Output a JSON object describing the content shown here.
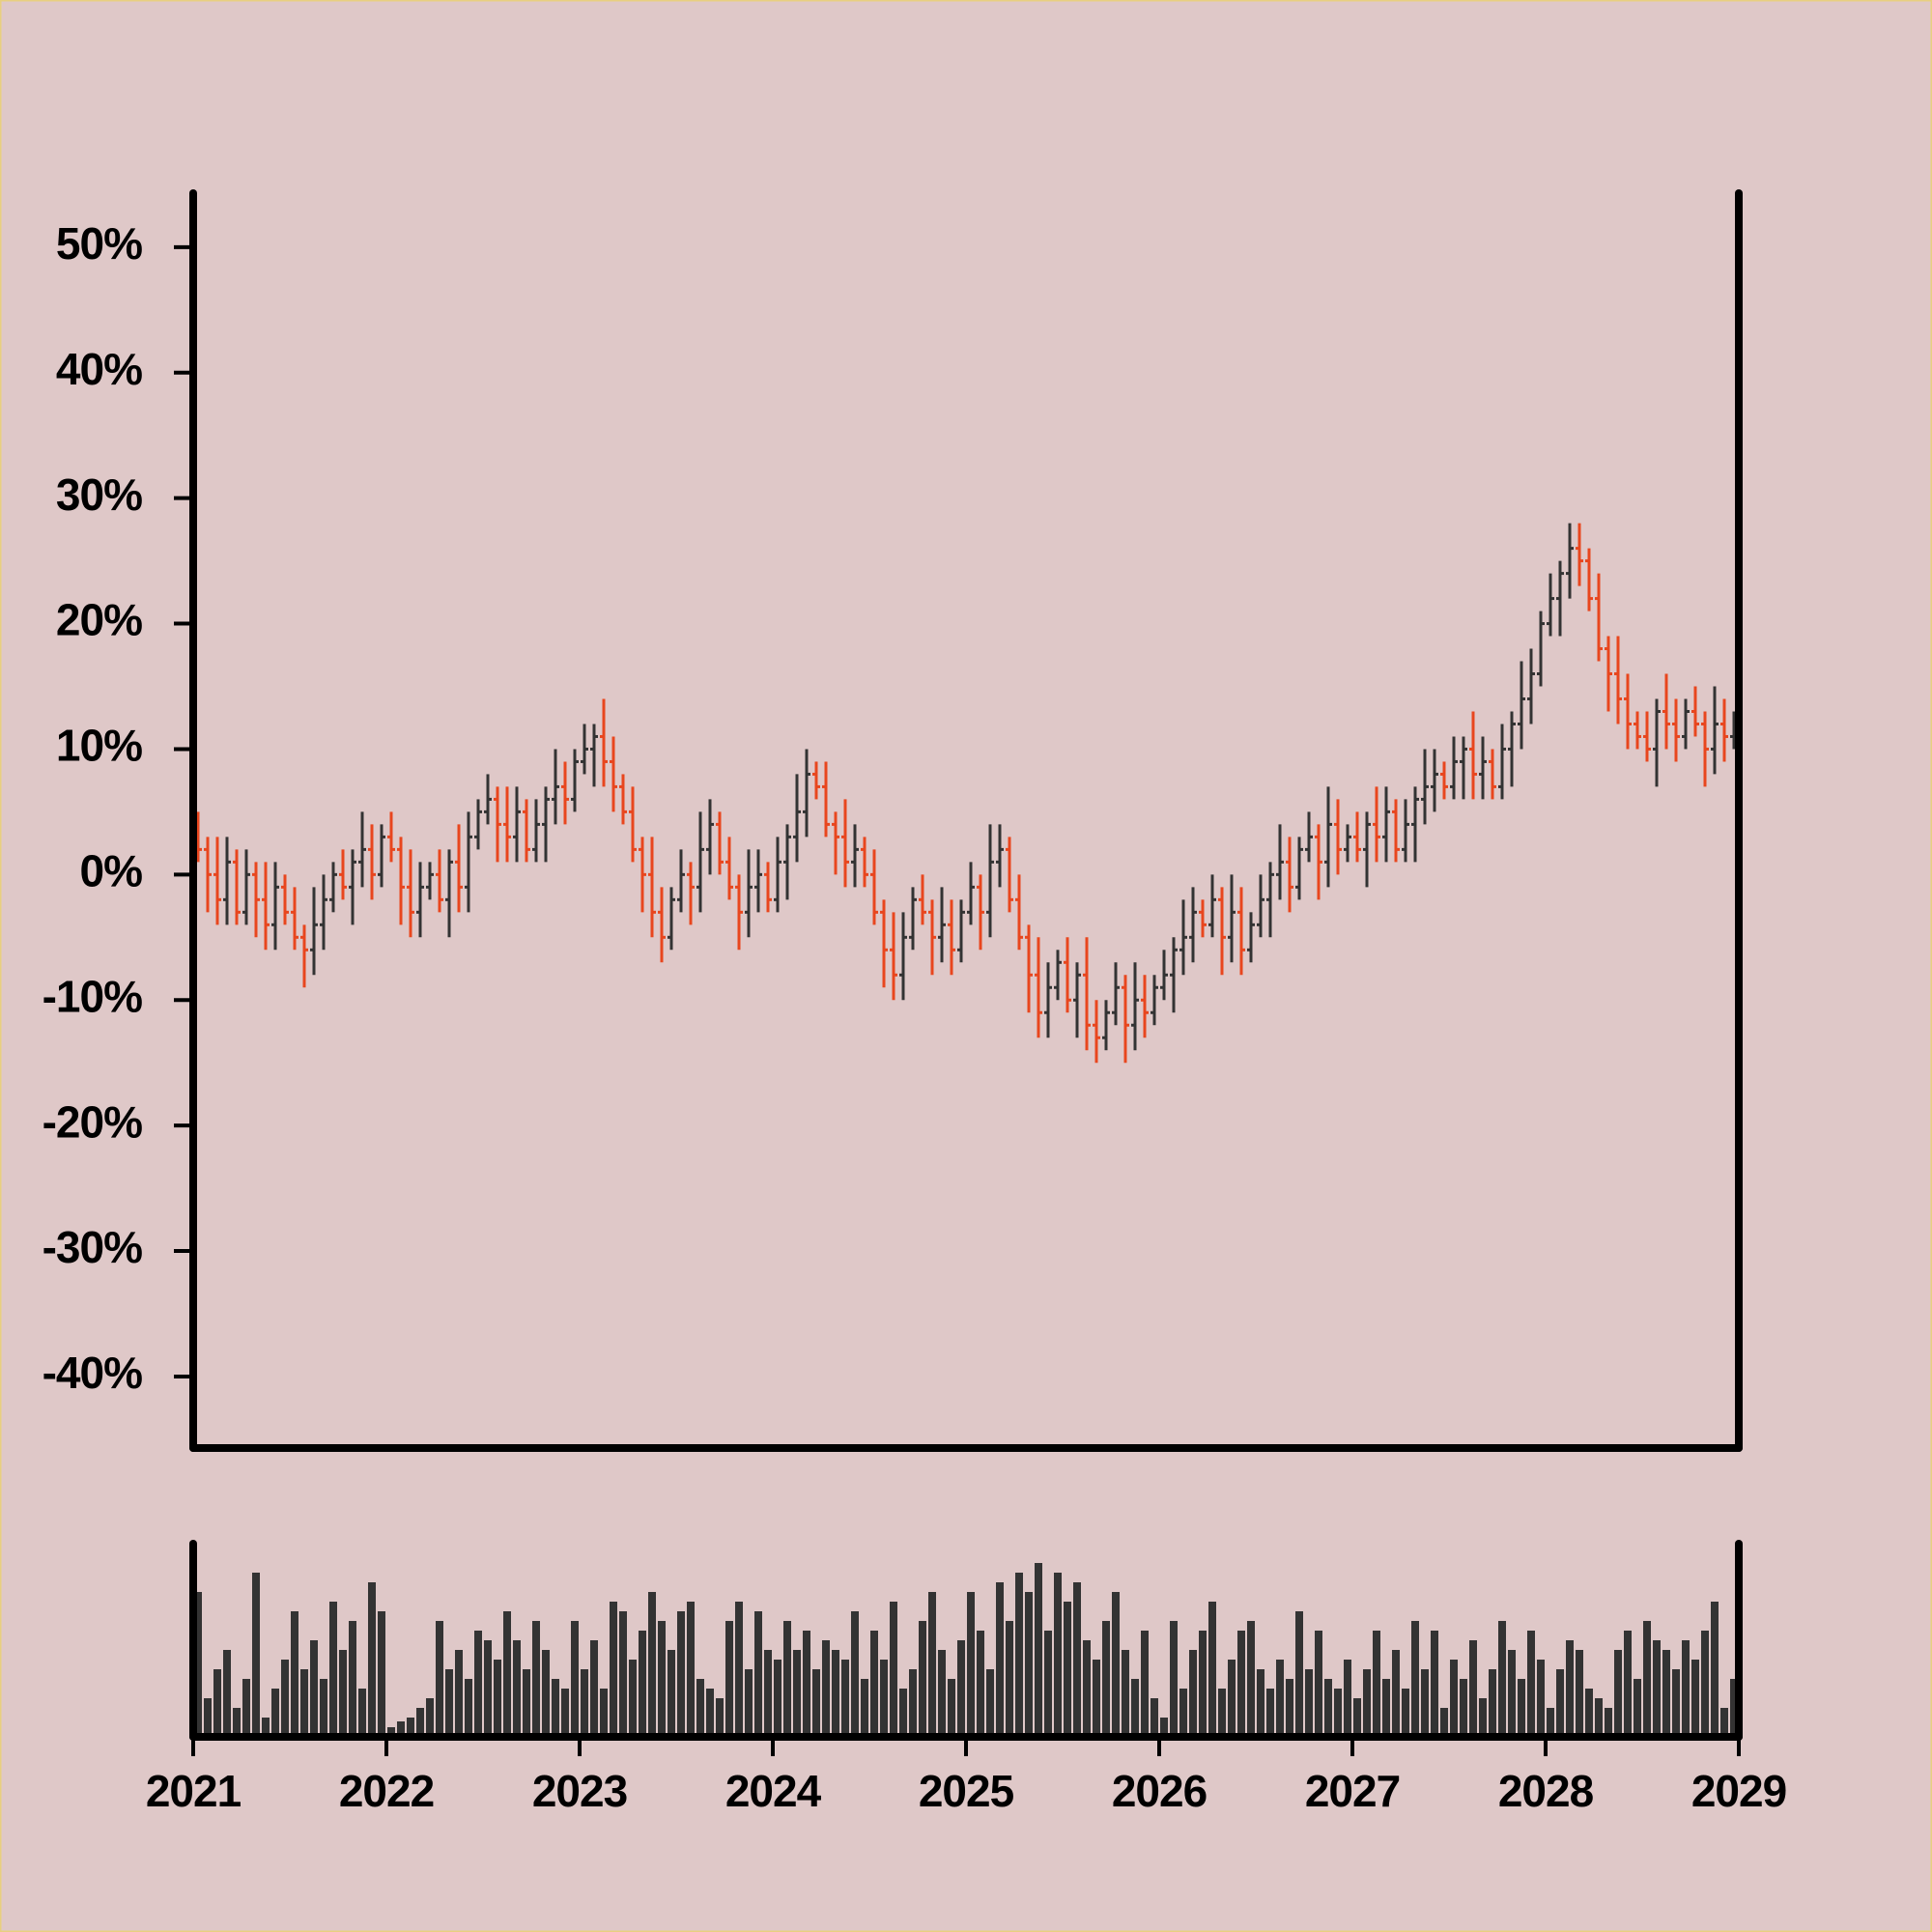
{
  "chart_data": {
    "type": "ohlc",
    "x": [
      2021.025,
      2021.075,
      2021.125,
      2021.175,
      2021.225,
      2021.275,
      2021.325,
      2021.375,
      2021.425,
      2021.475,
      2021.525,
      2021.575,
      2021.625,
      2021.675,
      2021.725,
      2021.775,
      2021.825,
      2021.875,
      2021.925,
      2021.975,
      2022.025,
      2022.075,
      2022.125,
      2022.175,
      2022.225,
      2022.275,
      2022.325,
      2022.375,
      2022.425,
      2022.475,
      2022.525,
      2022.575,
      2022.625,
      2022.675,
      2022.725,
      2022.775,
      2022.825,
      2022.875,
      2022.925,
      2022.975,
      2023.025,
      2023.075,
      2023.125,
      2023.175,
      2023.225,
      2023.275,
      2023.325,
      2023.375,
      2023.425,
      2023.475,
      2023.525,
      2023.575,
      2023.625,
      2023.675,
      2023.725,
      2023.775,
      2023.825,
      2023.875,
      2023.925,
      2023.975,
      2024.025,
      2024.075,
      2024.125,
      2024.175,
      2024.225,
      2024.275,
      2024.325,
      2024.375,
      2024.425,
      2024.475,
      2024.525,
      2024.575,
      2024.625,
      2024.675,
      2024.725,
      2024.775,
      2024.825,
      2024.875,
      2024.925,
      2024.975,
      2025.025,
      2025.075,
      2025.125,
      2025.175,
      2025.225,
      2025.275,
      2025.325,
      2025.375,
      2025.425,
      2025.475,
      2025.525,
      2025.575,
      2025.625,
      2025.675,
      2025.725,
      2025.775,
      2025.825,
      2025.875,
      2025.925,
      2025.975,
      2026.025,
      2026.075,
      2026.125,
      2026.175,
      2026.225,
      2026.275,
      2026.325,
      2026.375,
      2026.425,
      2026.475,
      2026.525,
      2026.575,
      2026.625,
      2026.675,
      2026.725,
      2026.775,
      2026.825,
      2026.875,
      2026.925,
      2026.975,
      2027.025,
      2027.075,
      2027.125,
      2027.175,
      2027.225,
      2027.275,
      2027.325,
      2027.375,
      2027.425,
      2027.475,
      2027.525,
      2027.575,
      2027.625,
      2027.675,
      2027.725,
      2027.775,
      2027.825,
      2027.875,
      2027.925,
      2027.975,
      2028.025,
      2028.075,
      2028.125,
      2028.175,
      2028.225,
      2028.275,
      2028.325,
      2028.375,
      2028.425,
      2028.475,
      2028.525,
      2028.575,
      2028.625,
      2028.675,
      2028.725,
      2028.775,
      2028.825,
      2028.875,
      2028.925,
      2028.975
    ],
    "open": [
      3,
      2,
      0,
      -2,
      1,
      -3,
      0,
      -2,
      -4,
      -1,
      -3,
      -5,
      -6,
      -4,
      -2,
      0,
      -1,
      1,
      2,
      0,
      3,
      2,
      -1,
      -3,
      -1,
      0,
      -2,
      1,
      -1,
      3,
      5,
      6,
      4,
      3,
      5,
      2,
      4,
      6,
      7,
      6,
      9,
      10,
      11,
      9,
      7,
      5,
      2,
      0,
      -3,
      -5,
      -2,
      0,
      -1,
      2,
      4,
      1,
      -1,
      -3,
      -1,
      0,
      -2,
      1,
      3,
      5,
      8,
      7,
      4,
      3,
      1,
      2,
      0,
      -3,
      -6,
      -8,
      -5,
      -2,
      -3,
      -5,
      -4,
      -6,
      -3,
      -1,
      -3,
      1,
      2,
      -2,
      -5,
      -8,
      -11,
      -9,
      -7,
      -10,
      -8,
      -12,
      -13,
      -11,
      -9,
      -12,
      -10,
      -11,
      -9,
      -8,
      -6,
      -5,
      -3,
      -4,
      -2,
      -5,
      -3,
      -6,
      -4,
      -2,
      0,
      1,
      -1,
      2,
      3,
      1,
      4,
      2,
      3,
      2,
      4,
      3,
      5,
      2,
      4,
      6,
      7,
      8,
      7,
      9,
      10,
      8,
      9,
      7,
      10,
      12,
      14,
      16,
      20,
      22,
      24,
      26,
      25,
      22,
      18,
      16,
      14,
      12,
      11,
      10,
      13,
      12,
      11,
      13,
      12,
      10,
      12,
      11
    ],
    "high": [
      5,
      3,
      3,
      3,
      2,
      2,
      1,
      1,
      1,
      0,
      -1,
      -4,
      -1,
      0,
      1,
      2,
      2,
      5,
      4,
      4,
      5,
      3,
      2,
      1,
      1,
      2,
      2,
      4,
      5,
      6,
      8,
      7,
      7,
      7,
      6,
      6,
      7,
      10,
      9,
      10,
      12,
      12,
      14,
      11,
      8,
      7,
      3,
      3,
      -1,
      -1,
      2,
      1,
      5,
      6,
      5,
      3,
      0,
      2,
      2,
      1,
      3,
      4,
      8,
      10,
      9,
      9,
      5,
      6,
      4,
      3,
      2,
      -2,
      -3,
      -3,
      -1,
      0,
      -2,
      -1,
      -2,
      -2,
      1,
      0,
      4,
      4,
      3,
      0,
      -4,
      -5,
      -7,
      -6,
      -5,
      -7,
      -5,
      -10,
      -10,
      -7,
      -8,
      -7,
      -8,
      -8,
      -6,
      -5,
      -2,
      -1,
      -2,
      0,
      -1,
      0,
      -1,
      -3,
      0,
      1,
      4,
      3,
      3,
      5,
      4,
      7,
      6,
      4,
      5,
      5,
      7,
      7,
      6,
      6,
      7,
      10,
      10,
      9,
      11,
      11,
      13,
      11,
      10,
      12,
      13,
      17,
      18,
      21,
      24,
      25,
      28,
      28,
      26,
      24,
      19,
      19,
      16,
      13,
      13,
      14,
      16,
      14,
      14,
      15,
      13,
      15,
      14,
      13
    ],
    "low": [
      1,
      -3,
      -4,
      -4,
      -4,
      -4,
      -5,
      -6,
      -6,
      -4,
      -6,
      -9,
      -8,
      -6,
      -3,
      -2,
      -4,
      -1,
      -2,
      -1,
      1,
      -4,
      -5,
      -5,
      -2,
      -3,
      -5,
      -3,
      -3,
      2,
      4,
      1,
      1,
      1,
      1,
      1,
      1,
      4,
      4,
      5,
      8,
      7,
      7,
      5,
      4,
      1,
      -3,
      -5,
      -7,
      -6,
      -3,
      -4,
      -3,
      0,
      0,
      -2,
      -6,
      -5,
      -3,
      -3,
      -3,
      -2,
      1,
      3,
      6,
      3,
      0,
      -1,
      -1,
      -1,
      -4,
      -9,
      -10,
      -10,
      -6,
      -4,
      -8,
      -7,
      -8,
      -7,
      -4,
      -6,
      -5,
      -1,
      -3,
      -6,
      -11,
      -13,
      -13,
      -10,
      -11,
      -13,
      -14,
      -15,
      -14,
      -12,
      -15,
      -14,
      -13,
      -12,
      -10,
      -11,
      -8,
      -7,
      -5,
      -5,
      -8,
      -7,
      -8,
      -7,
      -5,
      -5,
      -2,
      -3,
      -2,
      1,
      -2,
      -1,
      0,
      1,
      1,
      -1,
      1,
      1,
      1,
      1,
      1,
      4,
      5,
      6,
      6,
      6,
      6,
      6,
      6,
      6,
      7,
      10,
      12,
      15,
      19,
      19,
      22,
      23,
      21,
      17,
      13,
      12,
      10,
      10,
      9,
      7,
      10,
      9,
      10,
      11,
      7,
      8,
      9,
      10
    ],
    "close": [
      2,
      0,
      -2,
      1,
      -3,
      0,
      -2,
      -4,
      -1,
      -3,
      -5,
      -6,
      -4,
      -2,
      0,
      -1,
      1,
      2,
      0,
      3,
      2,
      -1,
      -3,
      -1,
      0,
      -2,
      1,
      -1,
      3,
      5,
      6,
      4,
      3,
      5,
      2,
      4,
      6,
      7,
      6,
      9,
      10,
      11,
      9,
      7,
      5,
      2,
      0,
      -3,
      -5,
      -2,
      0,
      -1,
      2,
      4,
      1,
      -1,
      -3,
      -1,
      0,
      -2,
      1,
      3,
      5,
      8,
      7,
      4,
      3,
      1,
      2,
      0,
      -3,
      -6,
      -8,
      -5,
      -2,
      -3,
      -5,
      -4,
      -6,
      -3,
      -1,
      -3,
      1,
      2,
      -2,
      -5,
      -8,
      -11,
      -9,
      -7,
      -10,
      -8,
      -12,
      -13,
      -11,
      -9,
      -12,
      -10,
      -11,
      -9,
      -8,
      -6,
      -5,
      -3,
      -4,
      -2,
      -5,
      -3,
      -6,
      -4,
      -2,
      0,
      1,
      -1,
      2,
      3,
      1,
      4,
      2,
      3,
      2,
      4,
      3,
      5,
      2,
      4,
      6,
      7,
      8,
      7,
      9,
      10,
      8,
      9,
      7,
      10,
      12,
      14,
      16,
      20,
      22,
      24,
      26,
      25,
      22,
      18,
      16,
      14,
      12,
      11,
      10,
      13,
      12,
      11,
      13,
      12,
      10,
      12,
      11,
      12
    ],
    "volume": [
      75,
      20,
      35,
      45,
      15,
      30,
      85,
      10,
      25,
      40,
      65,
      35,
      50,
      30,
      70,
      45,
      60,
      25,
      80,
      65,
      5,
      8,
      10,
      15,
      20,
      60,
      35,
      45,
      30,
      55,
      50,
      40,
      65,
      50,
      35,
      60,
      45,
      30,
      25,
      60,
      35,
      50,
      25,
      70,
      65,
      40,
      55,
      75,
      60,
      45,
      65,
      70,
      30,
      25,
      20,
      60,
      70,
      35,
      65,
      45,
      40,
      60,
      45,
      55,
      35,
      50,
      45,
      40,
      65,
      30,
      55,
      40,
      70,
      25,
      35,
      60,
      75,
      45,
      30,
      50,
      75,
      55,
      35,
      80,
      60,
      85,
      75,
      90,
      55,
      85,
      70,
      80,
      50,
      40,
      60,
      75,
      45,
      30,
      55,
      20,
      10,
      60,
      25,
      45,
      55,
      70,
      25,
      40,
      55,
      60,
      35,
      25,
      40,
      30,
      65,
      35,
      55,
      30,
      25,
      40,
      20,
      35,
      55,
      30,
      45,
      25,
      60,
      35,
      55,
      15,
      40,
      30,
      50,
      20,
      35,
      60,
      45,
      30,
      55,
      40,
      15,
      35,
      50,
      45,
      25,
      20,
      15,
      45,
      55,
      30,
      60,
      50,
      45,
      35,
      50,
      40,
      55,
      70,
      15,
      30
    ],
    "xlim": [
      2021,
      2029
    ],
    "xticks": [
      2021,
      2022,
      2023,
      2024,
      2025,
      2026,
      2027,
      2028,
      2029
    ],
    "ylim": [
      -45.7,
      54.3
    ],
    "yticks": [
      {
        "value": 50,
        "label": "50%"
      },
      {
        "value": 40,
        "label": "40%"
      },
      {
        "value": 30,
        "label": "30%"
      },
      {
        "value": 20,
        "label": "20%"
      },
      {
        "value": 10,
        "label": "10%"
      },
      {
        "value": 0,
        "label": "0%"
      },
      {
        "value": -10,
        "label": "-10%"
      },
      {
        "value": -20,
        "label": "-20%"
      },
      {
        "value": -30,
        "label": "-30%"
      },
      {
        "value": -40,
        "label": "-40%"
      }
    ],
    "volume_ylim": [
      0,
      100
    ],
    "up_color": "#333333",
    "down_color": "#e8461e",
    "volume_color": "#333333"
  }
}
